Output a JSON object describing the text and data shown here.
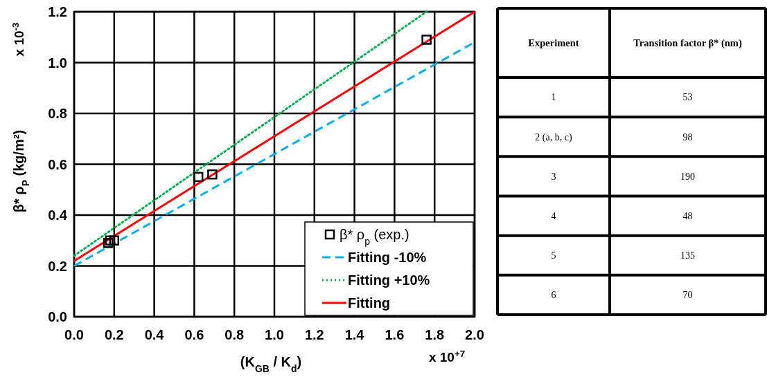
{
  "chart_data": [
    {
      "type": "scatter",
      "xlabel": "(K$_{GB}$ / K$_{d}$)",
      "ylabel": "β* ρ$_{P}$     (kg/m²)",
      "annotations": [
        "x 10$^{-3}$",
        "x 10$^{+7}$"
      ],
      "xlim": [
        0,
        2
      ],
      "xticks": [
        {
          "value": 0,
          "label": "0.0"
        },
        {
          "value": 0.2,
          "label": "0.2"
        },
        {
          "value": 0.4,
          "label": "0.4"
        },
        {
          "value": 0.6,
          "label": "0.6"
        },
        {
          "value": 0.8,
          "label": "0.8"
        },
        {
          "value": 1,
          "label": "1.0"
        },
        {
          "value": 1.2,
          "label": "1.2"
        },
        {
          "value": 1.4,
          "label": "1.4"
        },
        {
          "value": 1.6,
          "label": "1.6"
        },
        {
          "value": 1.8,
          "label": "1.8"
        },
        {
          "value": 2,
          "label": "2.0"
        }
      ],
      "ylim": [
        0,
        1.2
      ],
      "yticks": [
        {
          "value": 0,
          "label": "0.0"
        },
        {
          "value": 0.2,
          "label": "0.2"
        },
        {
          "value": 0.4,
          "label": "0.4"
        },
        {
          "value": 0.6,
          "label": "0.6"
        },
        {
          "value": 0.8,
          "label": "0.8"
        },
        {
          "value": 1,
          "label": "1.0"
        },
        {
          "value": 1.2,
          "label": "1.2"
        }
      ],
      "grid": true,
      "legend": "bottom right",
      "series": [
        {
          "name": "β* ρ$_{p}$    (exp.)",
          "type": "scatter",
          "marker": "square",
          "color": "#000000",
          "x": [
            0.17,
            0.18,
            0.2,
            0.62,
            0.69,
            1.76
          ],
          "values": [
            0.29,
            0.3,
            0.3,
            0.55,
            0.56,
            1.09
          ]
        },
        {
          "name": "Fitting -10%",
          "type": "line",
          "line_style": "dashed",
          "color": "#00b0f0",
          "x": [
            0,
            2
          ],
          "values": [
            0.2,
            1.08
          ]
        },
        {
          "name": "Fitting +10%",
          "type": "line",
          "line_style": "dotted",
          "color": "#00b050",
          "x": [
            0,
            1.76
          ],
          "values": [
            0.24,
            1.2
          ]
        },
        {
          "name": "Fitting",
          "type": "line",
          "line_style": "solid",
          "color": "#ff0000",
          "x": [
            0,
            2
          ],
          "values": [
            0.22,
            1.2
          ]
        }
      ]
    },
    {
      "type": "other",
      "annotations": [
        "Experiment",
        "Transition factor β* (nm)",
        "1",
        "53",
        "2 (a, b, c)",
        "98",
        "3",
        "190",
        "4",
        "48",
        "5",
        "135",
        "6",
        "70"
      ]
    }
  ]
}
